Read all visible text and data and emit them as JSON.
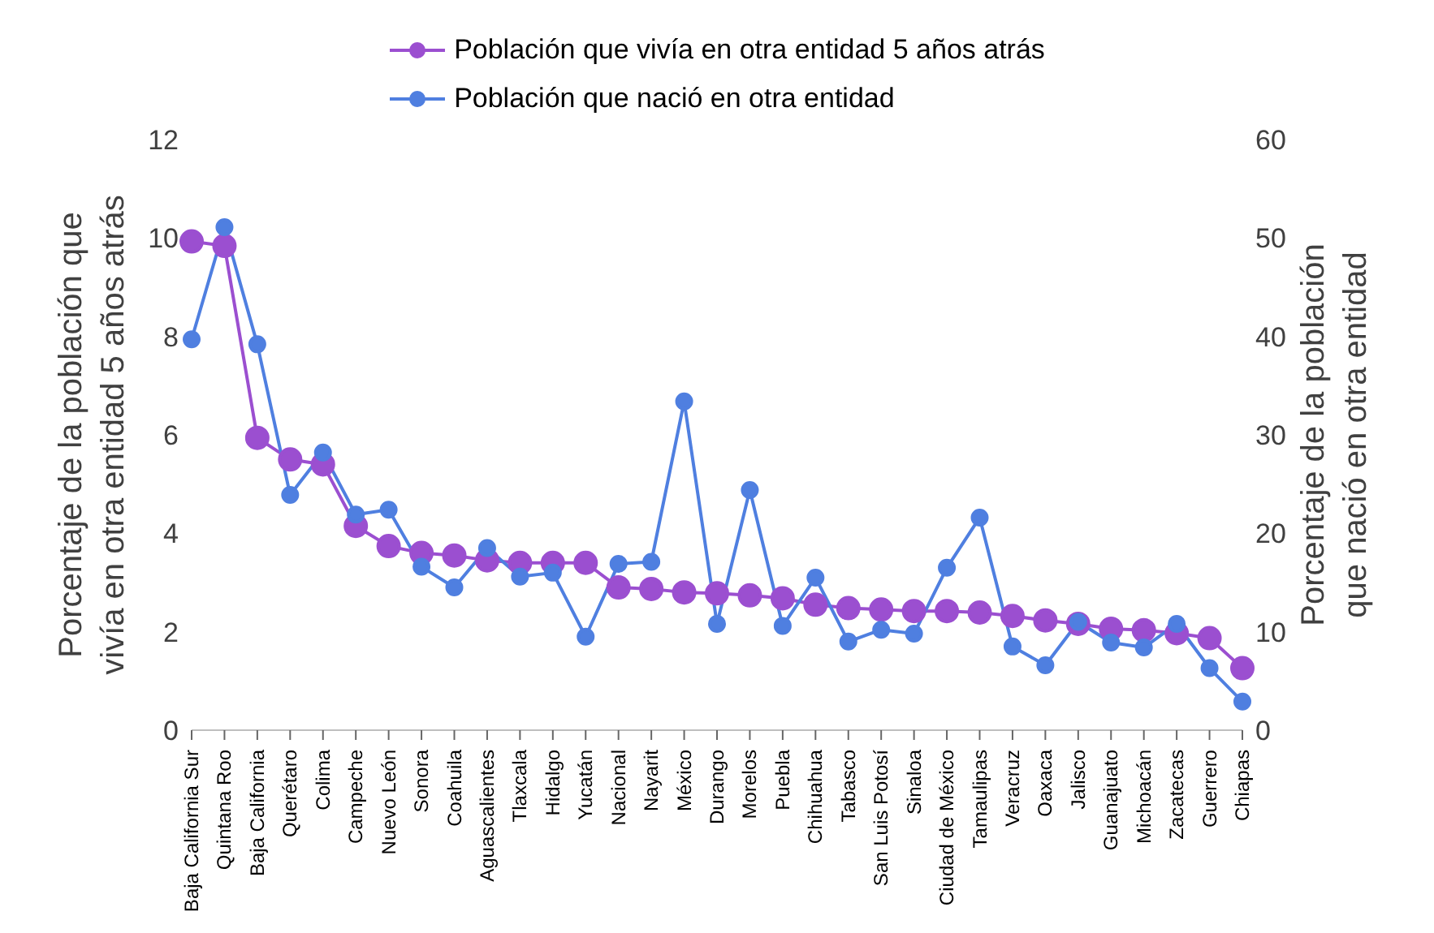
{
  "chart_data": {
    "type": "line",
    "ylabel": "Porcentaje de la población que vivía en otra entidad 5 años atrás",
    "y2label": "Porcentaje de la población que nació en otra entidad",
    "categories": [
      "Baja California Sur",
      "Quintana Roo",
      "Baja California",
      "Querétaro",
      "Colima",
      "Campeche",
      "Nuevo León",
      "Sonora",
      "Coahuila",
      "Aguascalientes",
      "Tlaxcala",
      "Hidalgo",
      "Yucatán",
      "Nacional",
      "Nayarit",
      "México",
      "Durango",
      "Morelos",
      "Puebla",
      "Chihuahua",
      "Tabasco",
      "San Luis Potosí",
      "Sinaloa",
      "Ciudad de México",
      "Tamaulipas",
      "Veracruz",
      "Oaxaca",
      "Jalisco",
      "Guanajuato",
      "Michoacán",
      "Zacatecas",
      "Guerrero",
      "Chiapas"
    ],
    "series": [
      {
        "name": "Población que vivía en otra entidad 5 años atrás",
        "color": "#9b4fd0",
        "values": [
          9.93,
          9.84,
          5.94,
          5.5,
          5.4,
          4.15,
          3.74,
          3.6,
          3.55,
          3.45,
          3.4,
          3.4,
          3.4,
          2.9,
          2.87,
          2.8,
          2.78,
          2.74,
          2.68,
          2.55,
          2.48,
          2.45,
          2.42,
          2.42,
          2.39,
          2.32,
          2.23,
          2.16,
          2.06,
          2.03,
          1.97,
          1.87,
          1.26
        ]
      },
      {
        "name": "Población que nació en otra entidad",
        "color": "#4f7fe0",
        "axis": "y2",
        "values": [
          39.7,
          51.1,
          39.2,
          23.9,
          28.2,
          21.9,
          22.4,
          16.6,
          14.5,
          18.5,
          15.6,
          16,
          9.5,
          16.9,
          17.1,
          33.4,
          10.8,
          24.4,
          10.6,
          15.5,
          9,
          10.2,
          9.8,
          16.5,
          21.6,
          8.5,
          6.6,
          11,
          8.9,
          8.4,
          10.8,
          6.3,
          2.9
        ]
      }
    ],
    "ylim": [
      0,
      12
    ],
    "yticks": [
      0,
      2,
      4,
      6,
      8,
      10,
      12
    ],
    "y2lim": [
      0,
      60
    ],
    "y2ticks": [
      0,
      10,
      20,
      30,
      40,
      50,
      60
    ],
    "legend": "top",
    "grid": false,
    "marker": "circle",
    "line_style": "solid"
  }
}
